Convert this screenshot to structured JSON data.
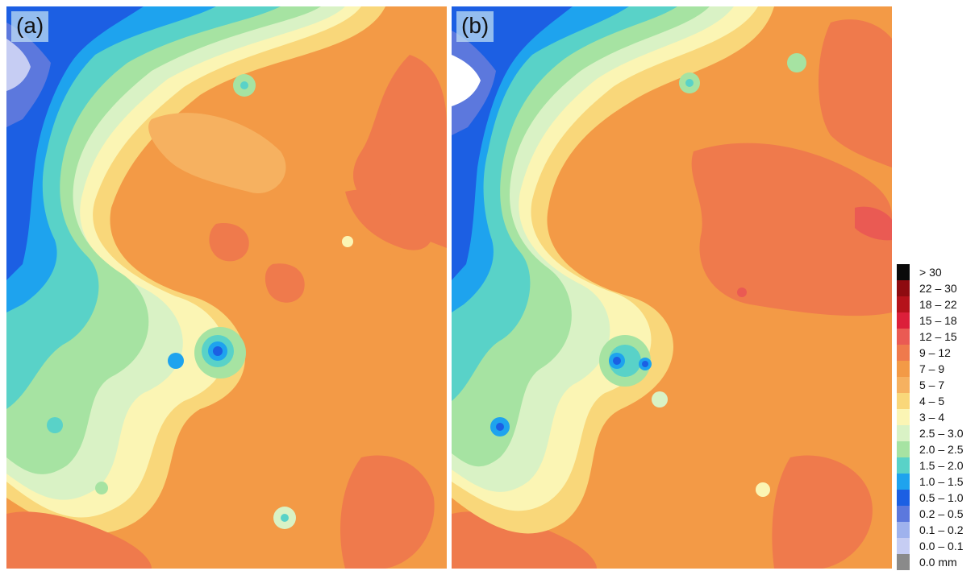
{
  "panels": [
    {
      "id": "a",
      "label": "(a)"
    },
    {
      "id": "b",
      "label": "(b)"
    }
  ],
  "legend": {
    "unit": "mm",
    "entries": [
      {
        "label": "> 30",
        "color": "#0a0a0a"
      },
      {
        "label": "22 – 30",
        "color": "#8e0b10"
      },
      {
        "label": "18 – 22",
        "color": "#b5121b"
      },
      {
        "label": "15 – 18",
        "color": "#dc1f3a"
      },
      {
        "label": "12 – 15",
        "color": "#ea5a53"
      },
      {
        "label": "9 – 12",
        "color": "#ef7a4c"
      },
      {
        "label": "7 – 9",
        "color": "#f39a46"
      },
      {
        "label": "5 – 7",
        "color": "#f6b160"
      },
      {
        "label": "4 – 5",
        "color": "#f9d77a"
      },
      {
        "label": "3 – 4",
        "color": "#fbf5b4"
      },
      {
        "label": "2.5 – 3.0",
        "color": "#d9f2c5"
      },
      {
        "label": "2.0 – 2.5",
        "color": "#a6e3a2"
      },
      {
        "label": "1.5 – 2.0",
        "color": "#59d2c8"
      },
      {
        "label": "1.0 – 1.5",
        "color": "#1ea3ee"
      },
      {
        "label": "0.5 – 1.0",
        "color": "#1c5fe3"
      },
      {
        "label": "0.2 – 0.5",
        "color": "#5c78dd"
      },
      {
        "label": "0.1 – 0.2",
        "color": "#9fb2ed"
      },
      {
        "label": "0.0 – 0.1",
        "color": "#c6cdf3"
      },
      {
        "label": "0.0 mm",
        "color": "#8a8a8a"
      }
    ]
  }
}
